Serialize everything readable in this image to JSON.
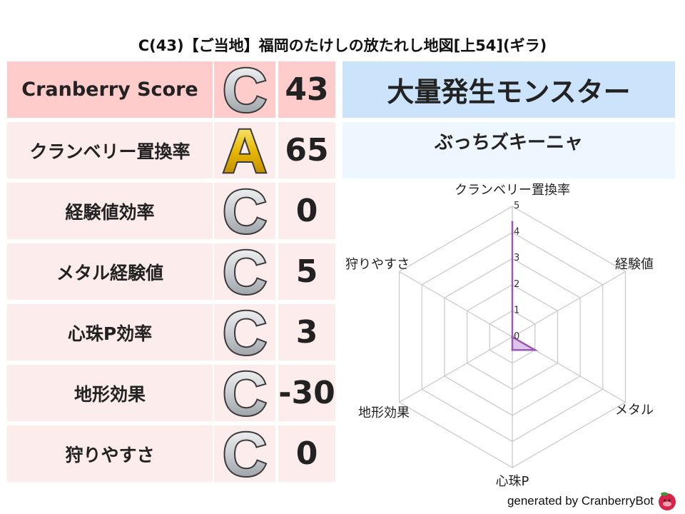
{
  "title": "C(43)【ご当地】福岡のたけしの放たれし地図[上54](ギラ)",
  "rows": [
    {
      "label": "Cranberry Score",
      "grade": "C",
      "value": "43"
    },
    {
      "label": "クランベリー置換率",
      "grade": "A",
      "value": "65"
    },
    {
      "label": "経験値効率",
      "grade": "C",
      "value": "0"
    },
    {
      "label": "メタル経験値",
      "grade": "C",
      "value": "5"
    },
    {
      "label": "心珠P効率",
      "grade": "C",
      "value": "3"
    },
    {
      "label": "地形効果",
      "grade": "C",
      "value": "-30"
    },
    {
      "label": "狩りやすさ",
      "grade": "C",
      "value": "0"
    }
  ],
  "monster_header": "大量発生モンスター",
  "monster_name": "ぶっちズキーニャ",
  "footer": "generated by CranberryBot",
  "colors": {
    "header_row": "#ffcccc",
    "rows": "#fdecec",
    "monster_header": "#cce4fb",
    "monster_name": "#eef6ff",
    "series": "#9b59b6"
  },
  "chart_data": {
    "type": "radar",
    "categories": [
      "クランベリー置換率",
      "経験値",
      "メタル",
      "心珠P",
      "地形効果",
      "狩りやすさ"
    ],
    "values": [
      4.4,
      0,
      1,
      0.5,
      0,
      0
    ],
    "rlim": [
      0,
      5
    ],
    "ticks": [
      "0",
      "1",
      "2",
      "3",
      "4",
      "5"
    ],
    "grid": true
  }
}
